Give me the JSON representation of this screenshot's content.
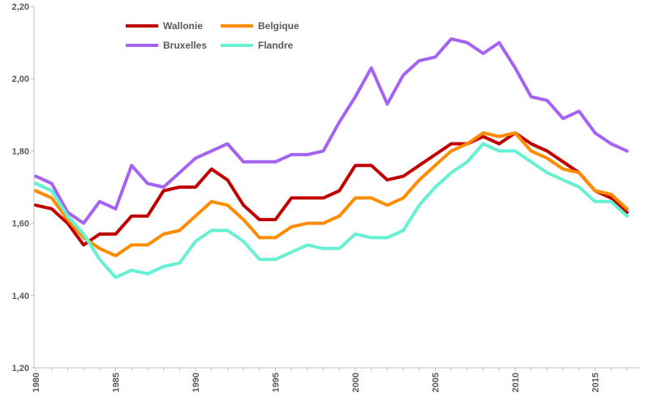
{
  "chart_data": {
    "type": "line",
    "title": "",
    "xlabel": "",
    "ylabel": "",
    "ylim": [
      1.2,
      2.2
    ],
    "y_ticks": [
      "1,20",
      "1,40",
      "1,60",
      "1,80",
      "2,00",
      "2,20"
    ],
    "x_ticks": [
      "1980",
      "1985",
      "1990",
      "1995",
      "2000",
      "2005",
      "2010",
      "2015"
    ],
    "x": [
      1980,
      1981,
      1982,
      1983,
      1984,
      1985,
      1986,
      1987,
      1988,
      1989,
      1990,
      1991,
      1992,
      1993,
      1994,
      1995,
      1996,
      1997,
      1998,
      1999,
      2000,
      2001,
      2002,
      2003,
      2004,
      2005,
      2006,
      2007,
      2008,
      2009,
      2010,
      2011,
      2012,
      2013,
      2014,
      2015,
      2016,
      2017
    ],
    "legend_position": "top-left",
    "grid": false,
    "series": [
      {
        "name": "Wallonie",
        "color": "#c00000",
        "values": [
          1.65,
          1.64,
          1.6,
          1.54,
          1.57,
          1.57,
          1.62,
          1.62,
          1.69,
          1.7,
          1.7,
          1.75,
          1.72,
          1.65,
          1.61,
          1.61,
          1.67,
          1.67,
          1.67,
          1.69,
          1.76,
          1.76,
          1.72,
          1.73,
          1.76,
          1.79,
          1.82,
          1.82,
          1.84,
          1.82,
          1.85,
          1.82,
          1.8,
          1.77,
          1.74,
          1.69,
          1.67,
          1.63
        ]
      },
      {
        "name": "Belgique",
        "color": "#ff8c00",
        "values": [
          1.69,
          1.67,
          1.61,
          1.56,
          1.53,
          1.51,
          1.54,
          1.54,
          1.57,
          1.58,
          1.62,
          1.66,
          1.65,
          1.61,
          1.56,
          1.56,
          1.59,
          1.6,
          1.6,
          1.62,
          1.67,
          1.67,
          1.65,
          1.67,
          1.72,
          1.76,
          1.8,
          1.82,
          1.85,
          1.84,
          1.85,
          1.8,
          1.78,
          1.75,
          1.74,
          1.69,
          1.68,
          1.64
        ]
      },
      {
        "name": "Bruxelles",
        "color": "#a463f2",
        "values": [
          1.73,
          1.71,
          1.63,
          1.6,
          1.66,
          1.64,
          1.76,
          1.71,
          1.7,
          1.74,
          1.78,
          1.8,
          1.82,
          1.77,
          1.77,
          1.77,
          1.79,
          1.79,
          1.8,
          1.88,
          1.95,
          2.03,
          1.93,
          2.01,
          2.05,
          2.06,
          2.11,
          2.1,
          2.07,
          2.1,
          2.03,
          1.95,
          1.94,
          1.89,
          1.91,
          1.85,
          1.82,
          1.8
        ]
      },
      {
        "name": "Flandre",
        "color": "#66f0d4",
        "values": [
          1.71,
          1.69,
          1.62,
          1.57,
          1.5,
          1.45,
          1.47,
          1.46,
          1.48,
          1.49,
          1.55,
          1.58,
          1.58,
          1.55,
          1.5,
          1.5,
          1.52,
          1.54,
          1.53,
          1.53,
          1.57,
          1.56,
          1.56,
          1.58,
          1.65,
          1.7,
          1.74,
          1.77,
          1.82,
          1.8,
          1.8,
          1.77,
          1.74,
          1.72,
          1.7,
          1.66,
          1.66,
          1.62
        ]
      }
    ]
  }
}
